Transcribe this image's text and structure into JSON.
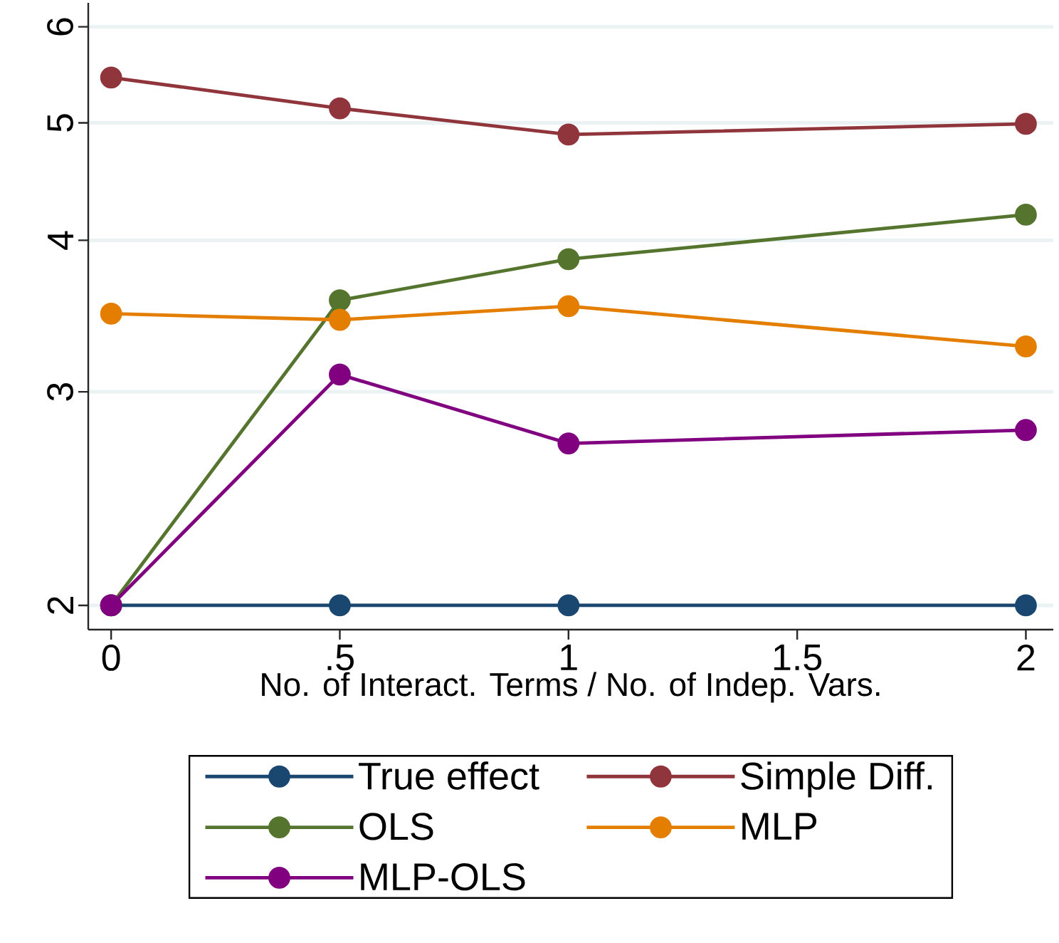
{
  "chart_data": {
    "type": "line",
    "xlabel": "No. of Interact. Terms / No. of Indep. Vars.",
    "x": [
      0,
      0.5,
      1,
      2
    ],
    "series": [
      {
        "name": "True effect",
        "color": "#1a476f",
        "values": [
          2,
          2,
          2,
          2
        ]
      },
      {
        "name": "Simple Diff.",
        "color": "#90353b",
        "values": [
          5.45,
          5.14,
          4.89,
          4.99
        ]
      },
      {
        "name": "OLS",
        "color": "#55752f",
        "values": [
          2,
          3.57,
          3.86,
          4.2
        ]
      },
      {
        "name": "MLP",
        "color": "#e37e00",
        "values": [
          3.48,
          3.44,
          3.53,
          3.27
        ]
      },
      {
        "name": "MLP-OLS",
        "color": "#800080",
        "values": [
          2,
          3.1,
          2.72,
          2.79
        ]
      }
    ],
    "xlim": [
      -0.05,
      2.06
    ],
    "ylim": [
      1.91,
      6.28
    ],
    "xticks": [
      0,
      {
        "value": 0.5,
        "label": ".5"
      },
      1,
      1.5,
      2
    ],
    "yticks": [
      2,
      3,
      4,
      5,
      6
    ],
    "log": "y",
    "grid": "y",
    "legend": "bottom",
    "marker": "circle",
    "line_style": "solid"
  }
}
